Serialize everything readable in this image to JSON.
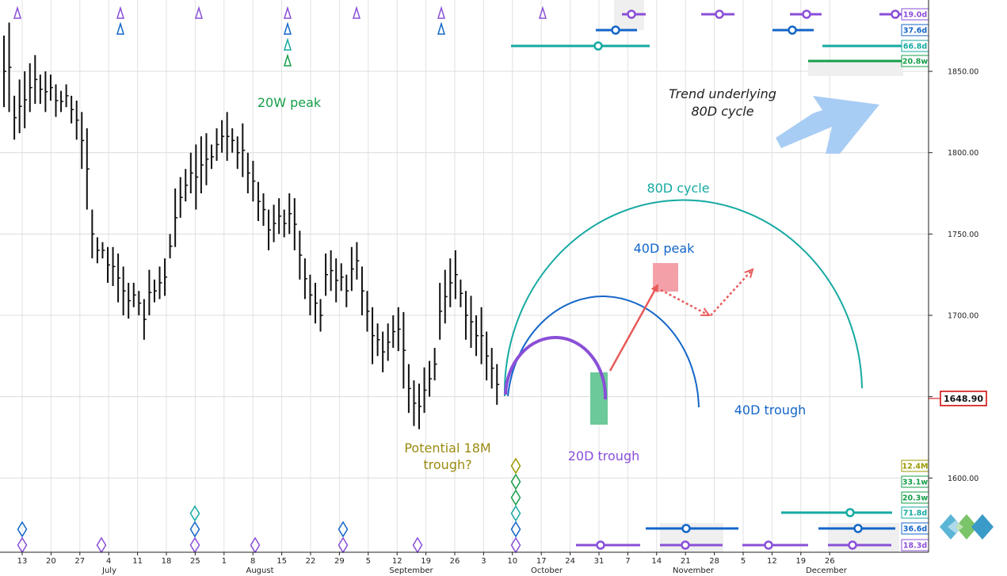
{
  "chart_data": {
    "type": "ohlc-bar",
    "x_day_ticks": [
      "13",
      "20",
      "27",
      "4",
      "11",
      "18",
      "25",
      "1",
      "8",
      "15",
      "22",
      "29",
      "5",
      "12",
      "19",
      "26",
      "3",
      "10",
      "17",
      "24",
      "31",
      "7",
      "14",
      "21",
      "28",
      "5",
      "12",
      "19",
      "26"
    ],
    "x_months": [
      "July",
      "August",
      "September",
      "October",
      "November",
      "December"
    ],
    "y_ticks": [
      "1850.00",
      "1800.00",
      "1750.00",
      "1700.00",
      "1650.00",
      "1600.00"
    ],
    "last_price": "1648.90",
    "price_bars": [
      [
        1872,
        1828
      ],
      [
        1880,
        1825
      ],
      [
        1835,
        1808
      ],
      [
        1845,
        1812
      ],
      [
        1850,
        1815
      ],
      [
        1855,
        1825
      ],
      [
        1860,
        1830
      ],
      [
        1848,
        1830
      ],
      [
        1850,
        1825
      ],
      [
        1848,
        1832
      ],
      [
        1842,
        1822
      ],
      [
        1838,
        1825
      ],
      [
        1842,
        1828
      ],
      [
        1835,
        1818
      ],
      [
        1832,
        1808
      ],
      [
        1825,
        1790
      ],
      [
        1815,
        1765
      ],
      [
        1765,
        1735
      ],
      [
        1748,
        1732
      ],
      [
        1745,
        1735
      ],
      [
        1742,
        1720
      ],
      [
        1742,
        1718
      ],
      [
        1738,
        1708
      ],
      [
        1730,
        1700
      ],
      [
        1720,
        1698
      ],
      [
        1720,
        1705
      ],
      [
        1715,
        1700
      ],
      [
        1710,
        1685
      ],
      [
        1728,
        1700
      ],
      [
        1722,
        1708
      ],
      [
        1730,
        1710
      ],
      [
        1735,
        1712
      ],
      [
        1750,
        1735
      ],
      [
        1778,
        1742
      ],
      [
        1785,
        1760
      ],
      [
        1790,
        1770
      ],
      [
        1800,
        1775
      ],
      [
        1805,
        1765
      ],
      [
        1810,
        1775
      ],
      [
        1812,
        1780
      ],
      [
        1805,
        1790
      ],
      [
        1815,
        1795
      ],
      [
        1820,
        1800
      ],
      [
        1825,
        1795
      ],
      [
        1815,
        1800
      ],
      [
        1810,
        1790
      ],
      [
        1818,
        1785
      ],
      [
        1800,
        1775
      ],
      [
        1795,
        1770
      ],
      [
        1782,
        1758
      ],
      [
        1775,
        1755
      ],
      [
        1765,
        1740
      ],
      [
        1768,
        1745
      ],
      [
        1772,
        1750
      ],
      [
        1765,
        1748
      ],
      [
        1775,
        1750
      ],
      [
        1772,
        1740
      ],
      [
        1752,
        1722
      ],
      [
        1735,
        1710
      ],
      [
        1725,
        1700
      ],
      [
        1720,
        1695
      ],
      [
        1710,
        1690
      ],
      [
        1738,
        1712
      ],
      [
        1740,
        1715
      ],
      [
        1735,
        1708
      ],
      [
        1732,
        1715
      ],
      [
        1725,
        1705
      ],
      [
        1742,
        1715
      ],
      [
        1745,
        1722
      ],
      [
        1730,
        1700
      ],
      [
        1715,
        1690
      ],
      [
        1705,
        1670
      ],
      [
        1695,
        1675
      ],
      [
        1690,
        1665
      ],
      [
        1695,
        1672
      ],
      [
        1700,
        1680
      ],
      [
        1705,
        1678
      ],
      [
        1702,
        1655
      ],
      [
        1670,
        1640
      ],
      [
        1660,
        1632
      ],
      [
        1658,
        1630
      ],
      [
        1668,
        1640
      ],
      [
        1672,
        1650
      ],
      [
        1680,
        1660
      ],
      [
        1720,
        1685
      ],
      [
        1728,
        1695
      ],
      [
        1735,
        1705
      ],
      [
        1740,
        1710
      ],
      [
        1722,
        1705
      ],
      [
        1715,
        1685
      ],
      [
        1712,
        1680
      ],
      [
        1700,
        1675
      ],
      [
        1705,
        1670
      ],
      [
        1690,
        1660
      ],
      [
        1680,
        1655
      ],
      [
        1670,
        1645
      ]
    ],
    "cycle_tags_top": [
      "19.0d",
      "37.6d",
      "66.8d",
      "20.8w"
    ],
    "cycle_tags_bottom": [
      "12.4M",
      "33.1w",
      "20.3w",
      "71.8d",
      "36.6d",
      "18.3d"
    ],
    "annotations": {
      "peak_20w": "20W peak",
      "trend_line1": "Trend underlying",
      "trend_line2": "80D cycle",
      "cycle_80d": "80D cycle",
      "peak_40d": "40D peak",
      "trough_40d": "40D trough",
      "trough_20d": "20D trough",
      "trough_18m_line1": "Potential 18M",
      "trough_18m_line2": "trough?"
    },
    "colors": {
      "purple": "#8a4fd8",
      "blue": "#1466c8",
      "teal": "#16aaa2",
      "green": "#169e4a",
      "olive": "#9a9a00",
      "red": "#e85a5a",
      "trend_arrow": "#a8cdf4",
      "green_box": "#6cc99a",
      "red_box": "#f4a0a8",
      "price_line": "#cc0000"
    }
  }
}
